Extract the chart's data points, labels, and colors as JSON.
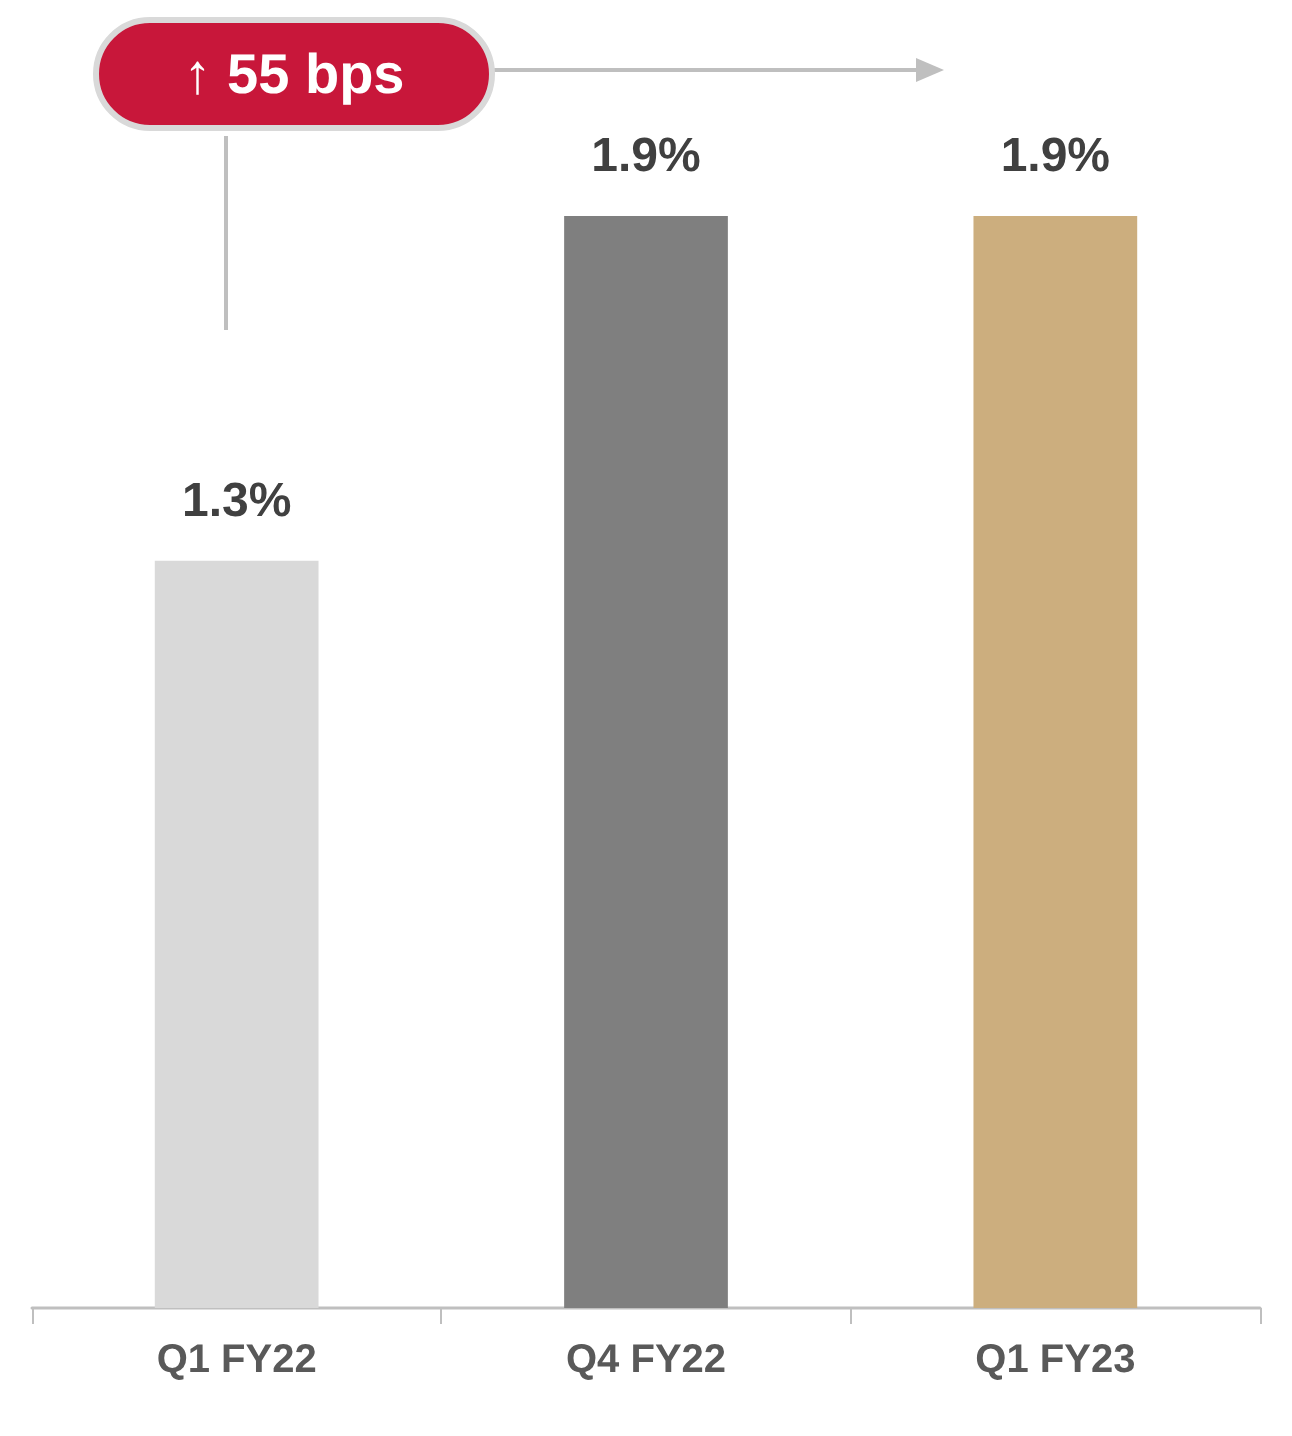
{
  "chart_data": {
    "type": "bar",
    "categories": [
      "Q1 FY22",
      "Q4 FY22",
      "Q1 FY23"
    ],
    "values": [
      1.3,
      1.9,
      1.9
    ],
    "value_labels": [
      "1.3%",
      "1.9%",
      "1.9%"
    ],
    "colors": [
      "#d9d9d9",
      "#7f7f7f",
      "#ccae7e"
    ],
    "annotations": [
      "↑ 55 bps"
    ]
  }
}
